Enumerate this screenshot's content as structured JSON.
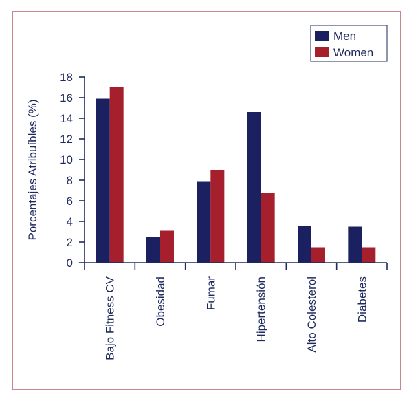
{
  "chart_data": {
    "type": "bar",
    "categories": [
      "Bajo Fitness CV",
      "Obesidad",
      "Fumar",
      "Hipertensión",
      "Alto Colesterol",
      "Diabetes"
    ],
    "series": [
      {
        "name": "Men",
        "color": "#1b2160",
        "values": [
          15.9,
          2.5,
          7.9,
          14.6,
          3.6,
          3.5
        ]
      },
      {
        "name": "Women",
        "color": "#a51f2d",
        "values": [
          17.0,
          3.1,
          9.0,
          6.8,
          1.5,
          1.5
        ]
      }
    ],
    "ylabel": "Porcentajes Atribuíbles (%)",
    "xlabel": "",
    "title": "",
    "ylim": [
      0,
      18
    ],
    "yticks": [
      "0",
      "2",
      "4",
      "6",
      "8",
      "10",
      "12",
      "14",
      "16",
      "18"
    ],
    "legend_position": "top-right",
    "grid": false
  }
}
